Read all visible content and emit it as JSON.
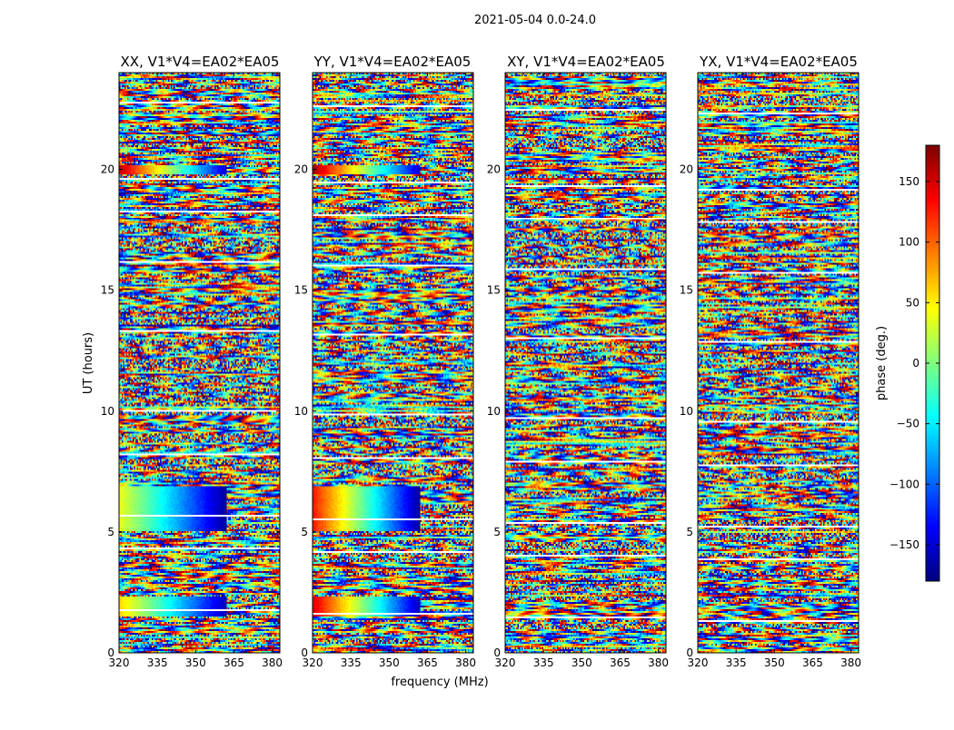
{
  "figure": {
    "title": "2021-05-04 0.0-24.0",
    "xlabel": "frequency (MHz)",
    "ylabel": "UT (hours)"
  },
  "colorbar": {
    "label": "phase (deg.)",
    "min": -180,
    "max": 180,
    "ticks": [
      -150,
      -100,
      -50,
      0,
      50,
      100,
      150
    ],
    "tick_labels": [
      "−150",
      "−100",
      "−50",
      "0",
      "50",
      "100",
      "150"
    ],
    "colormap": [
      "#00007f",
      "#0000ff",
      "#007fff",
      "#00ffff",
      "#7fff7f",
      "#ffff00",
      "#ff7f00",
      "#ff0000",
      "#7f0000"
    ]
  },
  "chart_data": [
    {
      "type": "heatmap",
      "title": "XX, V1*V4=EA02*EA05",
      "x_range": [
        320,
        383
      ],
      "y_range": [
        0,
        24
      ],
      "x_ticks": [
        320,
        335,
        350,
        365,
        380
      ],
      "y_ticks": [
        0,
        5,
        10,
        15,
        20
      ],
      "value": "phase (deg.) vs frequency and UT",
      "features": [
        {
          "ut": [
            1.5,
            2.3
          ],
          "freq": [
            320,
            362
          ],
          "phase": [
            60,
            -160
          ]
        },
        {
          "ut": [
            5.0,
            6.9
          ],
          "freq": [
            320,
            362
          ],
          "phase": [
            40,
            -170
          ]
        },
        {
          "ut": [
            19.8,
            20.2
          ],
          "freq": [
            320,
            362
          ],
          "phase": [
            160,
            -150
          ]
        }
      ]
    },
    {
      "type": "heatmap",
      "title": "YY, V1*V4=EA02*EA05",
      "x_range": [
        320,
        383
      ],
      "y_range": [
        0,
        24
      ],
      "x_ticks": [
        320,
        335,
        350,
        365,
        380
      ],
      "y_ticks": [
        0,
        5,
        10,
        15,
        20
      ],
      "value": "phase (deg.) vs frequency and UT",
      "features": [
        {
          "ut": [
            1.5,
            2.3
          ],
          "freq": [
            320,
            362
          ],
          "phase": [
            150,
            -160
          ]
        },
        {
          "ut": [
            5.0,
            6.9
          ],
          "freq": [
            320,
            362
          ],
          "phase": [
            130,
            -170
          ]
        },
        {
          "ut": [
            19.8,
            20.2
          ],
          "freq": [
            320,
            362
          ],
          "phase": [
            170,
            -150
          ]
        }
      ]
    },
    {
      "type": "heatmap",
      "title": "XY, V1*V4=EA02*EA05",
      "x_range": [
        320,
        383
      ],
      "y_range": [
        0,
        24
      ],
      "x_ticks": [
        320,
        335,
        350,
        365,
        380
      ],
      "y_ticks": [
        0,
        5,
        10,
        15,
        20
      ],
      "value": "phase (deg.) vs frequency and UT",
      "features": []
    },
    {
      "type": "heatmap",
      "title": "YX, V1*V4=EA02*EA05",
      "x_range": [
        320,
        383
      ],
      "y_range": [
        0,
        24
      ],
      "x_ticks": [
        320,
        335,
        350,
        365,
        380
      ],
      "y_ticks": [
        0,
        5,
        10,
        15,
        20
      ],
      "value": "phase (deg.) vs frequency and UT",
      "features": []
    }
  ]
}
